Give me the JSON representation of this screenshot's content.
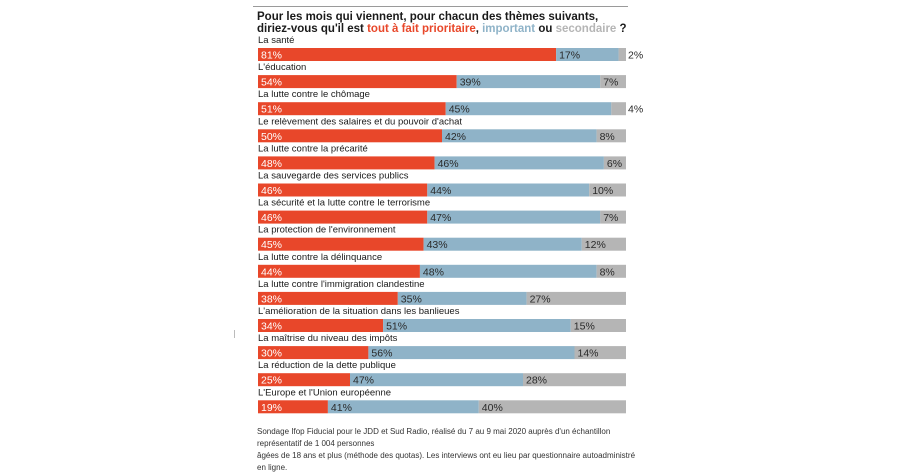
{
  "header": {
    "question_part1": "Pour les mois qui viennent, pour chacun des thèmes suivants,",
    "question_part2a": "diriez-vous qu'il est ",
    "question_highlight_red": "tout à fait prioritaire",
    "question_sep1": ", ",
    "question_highlight_blue": "important",
    "question_sep2": " ou ",
    "question_highlight_grey": "secondaire",
    "question_end": " ?"
  },
  "colors": {
    "prioritaire": "#e8472a",
    "important": "#8fb3c8",
    "secondaire": "#b5b5b5"
  },
  "chart_data": {
    "type": "bar",
    "orientation": "horizontal",
    "stacked": true,
    "categories": [
      "La santé",
      "L'éducation",
      "La lutte contre le chômage",
      "Le relèvement des salaires et du pouvoir d'achat",
      "La lutte contre la précarité",
      "La sauvegarde des services publics",
      "La sécurité et la lutte contre le terrorisme",
      "La protection de l'environnement",
      "La lutte contre la délinquance",
      "La lutte contre l'immigration clandestine",
      "L'amélioration de la situation dans les banlieues",
      "La maîtrise du niveau des impôts",
      "La réduction de la dette publique",
      "L'Europe et l'Union européenne"
    ],
    "series": [
      {
        "name": "tout à fait prioritaire",
        "values": [
          81,
          54,
          51,
          50,
          48,
          46,
          46,
          45,
          44,
          38,
          34,
          30,
          25,
          19
        ]
      },
      {
        "name": "important",
        "values": [
          17,
          39,
          45,
          42,
          46,
          44,
          47,
          43,
          48,
          35,
          51,
          56,
          47,
          41
        ]
      },
      {
        "name": "secondaire",
        "values": [
          2,
          7,
          4,
          8,
          6,
          10,
          7,
          12,
          8,
          27,
          15,
          14,
          28,
          40
        ]
      }
    ],
    "value_suffix": "%",
    "xlim": [
      0,
      100
    ],
    "grid": false,
    "legend": "in-title"
  },
  "footer": {
    "source_line1": "Sondage Ifop Fiducial pour le JDD et Sud Radio, réalisé du 7 au 9 mai 2020 auprès d'un échantillon représentatif de 1 004 personnes",
    "source_line2": "âgées de 18 ans et plus (méthode des quotas). Les interviews ont eu lieu par questionnaire autoadministré en ligne."
  }
}
